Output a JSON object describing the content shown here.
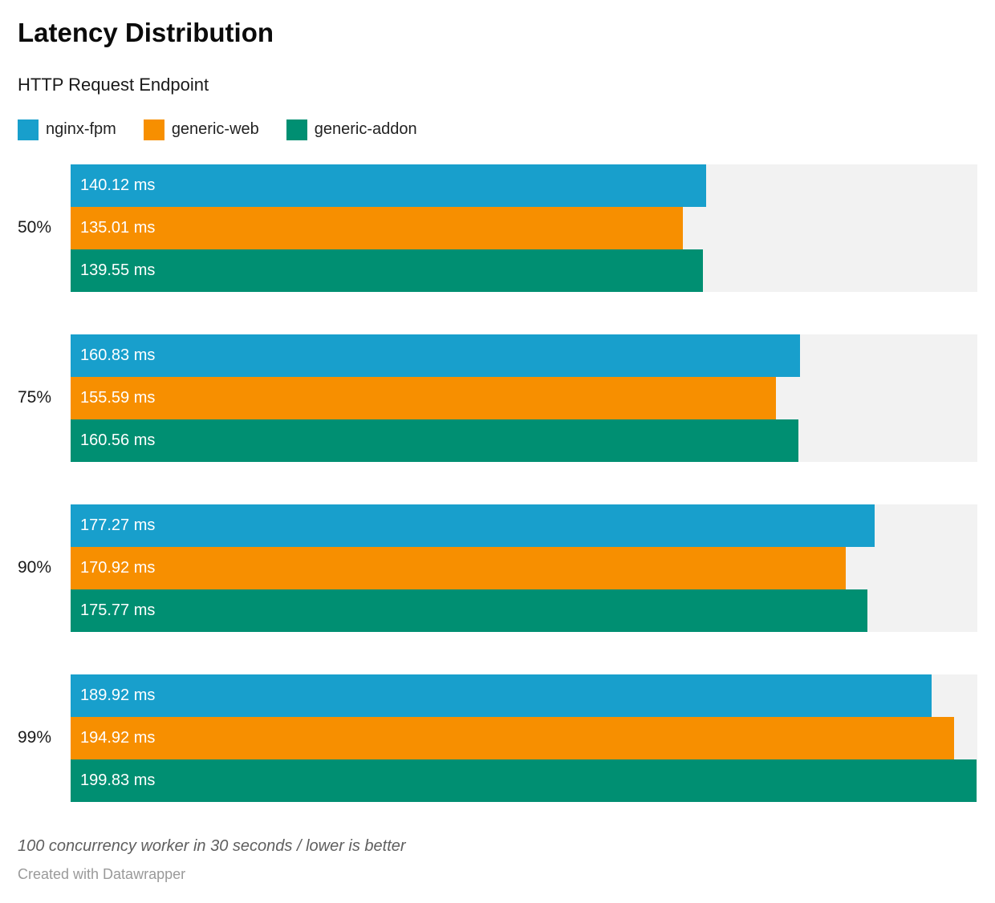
{
  "header": {
    "title": "Latency Distribution",
    "subtitle": "HTTP Request Endpoint"
  },
  "chart_data": {
    "type": "bar",
    "orientation": "horizontal",
    "title": "Latency Distribution",
    "subtitle": "HTTP Request Endpoint",
    "categories": [
      "50%",
      "75%",
      "90%",
      "99%"
    ],
    "series": [
      {
        "name": "nginx-fpm",
        "color": "#189fcc",
        "values": [
          140.12,
          160.83,
          177.27,
          189.92
        ],
        "labels": [
          "140.12 ms",
          "160.83 ms",
          "177.27 ms",
          "189.92 ms"
        ]
      },
      {
        "name": "generic-web",
        "color": "#f78f00",
        "values": [
          135.01,
          155.59,
          170.92,
          194.92
        ],
        "labels": [
          "135.01 ms",
          "155.59 ms",
          "170.92 ms",
          "194.92 ms"
        ]
      },
      {
        "name": "generic-addon",
        "color": "#008f72",
        "values": [
          139.55,
          160.56,
          175.77,
          199.83
        ],
        "labels": [
          "139.55 ms",
          "160.56 ms",
          "175.77 ms",
          "199.83 ms"
        ]
      }
    ],
    "value_suffix": " ms",
    "xlim": [
      0,
      200
    ],
    "grid": false,
    "legend_position": "top",
    "track_color": "#f2f2f2",
    "value_label_color": "#ffffff"
  },
  "footer": {
    "notes": "100 concurrency worker in 30 seconds / lower is better",
    "attribution": "Created with Datawrapper"
  }
}
